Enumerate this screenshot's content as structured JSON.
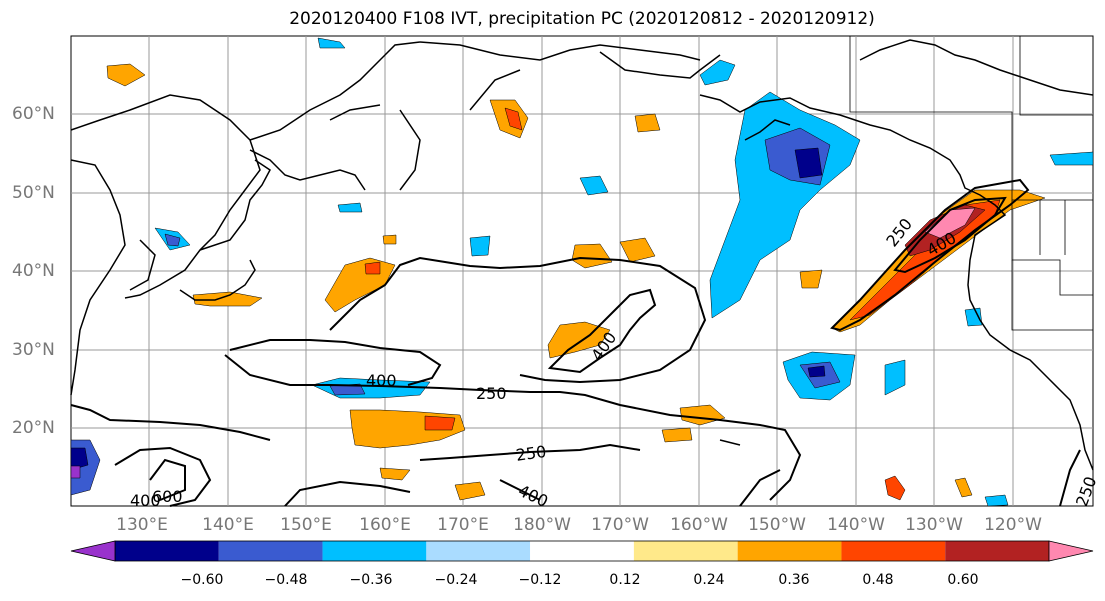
{
  "title": "2020120400 F108 IVT, precipitation PC (2020120812 - 2020120912)",
  "lat_labels": [
    "60°N",
    "50°N",
    "40°N",
    "30°N",
    "20°N"
  ],
  "lon_labels": [
    "130°E",
    "140°E",
    "150°E",
    "160°E",
    "170°E",
    "180°W",
    "170°W",
    "160°W",
    "150°W",
    "140°W",
    "130°W",
    "120°W"
  ],
  "contour_labels": [
    "250",
    "400",
    "250",
    "400",
    "250",
    "400",
    "600",
    "400",
    "250",
    "400",
    "250"
  ],
  "colorbar": {
    "colors": [
      "#9932cc",
      "#00008b",
      "#3a5bd0",
      "#00bfff",
      "#aadcff",
      "#ffffff",
      "#ffe98a",
      "#ffa500",
      "#ff4500",
      "#b22222",
      "#ff88b0"
    ],
    "ticks": [
      "−0.60",
      "−0.48",
      "−0.36",
      "−0.24",
      "−0.12",
      "0.12",
      "0.24",
      "0.36",
      "0.48",
      "0.60"
    ]
  }
}
